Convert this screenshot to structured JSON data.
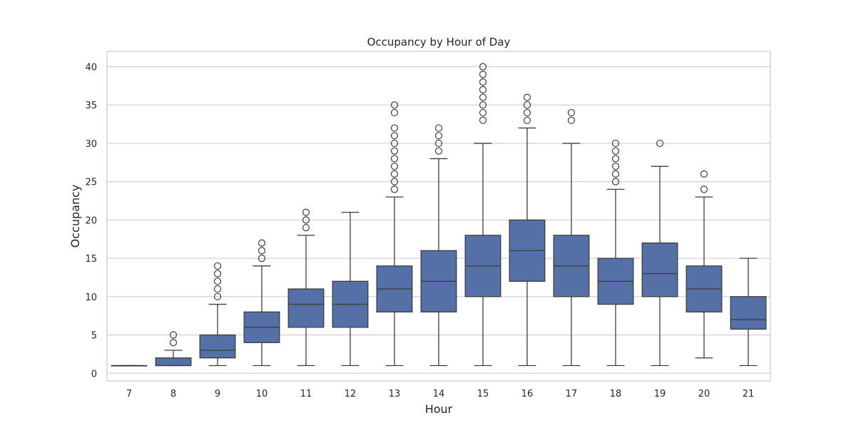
{
  "chart_data": {
    "type": "box",
    "title": "Occupancy by Hour of Day",
    "xlabel": "Hour",
    "ylabel": "Occupancy",
    "ylim": [
      -1,
      42
    ],
    "yticks": [
      0,
      5,
      10,
      15,
      20,
      25,
      30,
      35,
      40
    ],
    "grid": true,
    "box_color": "#5470a6",
    "edge_color": "#3d3d3d",
    "grid_color": "#cccccc",
    "categories": [
      "7",
      "8",
      "9",
      "10",
      "11",
      "12",
      "13",
      "14",
      "15",
      "16",
      "17",
      "18",
      "19",
      "20",
      "21"
    ],
    "boxes": [
      {
        "hour": "7",
        "whisker_low": 1,
        "q1": 1,
        "median": 1,
        "q3": 1,
        "whisker_high": 1,
        "outliers": []
      },
      {
        "hour": "8",
        "whisker_low": 1,
        "q1": 1,
        "median": 1,
        "q3": 2,
        "whisker_high": 3,
        "outliers": [
          4,
          5
        ]
      },
      {
        "hour": "9",
        "whisker_low": 1,
        "q1": 2,
        "median": 3,
        "q3": 5,
        "whisker_high": 9,
        "outliers": [
          10,
          11,
          12,
          13,
          14
        ]
      },
      {
        "hour": "10",
        "whisker_low": 1,
        "q1": 4,
        "median": 6,
        "q3": 8,
        "whisker_high": 14,
        "outliers": [
          15,
          16,
          17
        ]
      },
      {
        "hour": "11",
        "whisker_low": 1,
        "q1": 6,
        "median": 9,
        "q3": 11,
        "whisker_high": 18,
        "outliers": [
          19,
          20,
          21
        ]
      },
      {
        "hour": "12",
        "whisker_low": 1,
        "q1": 6,
        "median": 9,
        "q3": 12,
        "whisker_high": 21,
        "outliers": []
      },
      {
        "hour": "13",
        "whisker_low": 1,
        "q1": 8,
        "median": 11,
        "q3": 14,
        "whisker_high": 23,
        "outliers": [
          24,
          25,
          26,
          27,
          28,
          29,
          30,
          31,
          32,
          34,
          35
        ]
      },
      {
        "hour": "14",
        "whisker_low": 1,
        "q1": 8,
        "median": 12,
        "q3": 16,
        "whisker_high": 28,
        "outliers": [
          29,
          30,
          31,
          32
        ]
      },
      {
        "hour": "15",
        "whisker_low": 1,
        "q1": 10,
        "median": 14,
        "q3": 18,
        "whisker_high": 30,
        "outliers": [
          33,
          34,
          35,
          36,
          37,
          38,
          39,
          40
        ]
      },
      {
        "hour": "16",
        "whisker_low": 1,
        "q1": 12,
        "median": 16,
        "q3": 20,
        "whisker_high": 32,
        "outliers": [
          33,
          34,
          35,
          36
        ]
      },
      {
        "hour": "17",
        "whisker_low": 1,
        "q1": 10,
        "median": 14,
        "q3": 18,
        "whisker_high": 30,
        "outliers": [
          33,
          34
        ]
      },
      {
        "hour": "18",
        "whisker_low": 1,
        "q1": 9,
        "median": 12,
        "q3": 15,
        "whisker_high": 24,
        "outliers": [
          25,
          26,
          27,
          28,
          29,
          30
        ]
      },
      {
        "hour": "19",
        "whisker_low": 1,
        "q1": 10,
        "median": 13,
        "q3": 17,
        "whisker_high": 27,
        "outliers": [
          30
        ]
      },
      {
        "hour": "20",
        "whisker_low": 2,
        "q1": 8,
        "median": 11,
        "q3": 14,
        "whisker_high": 23,
        "outliers": [
          24,
          26
        ]
      },
      {
        "hour": "21",
        "whisker_low": 1,
        "q1": 5.75,
        "median": 7,
        "q3": 10,
        "whisker_high": 15,
        "outliers": []
      }
    ]
  }
}
